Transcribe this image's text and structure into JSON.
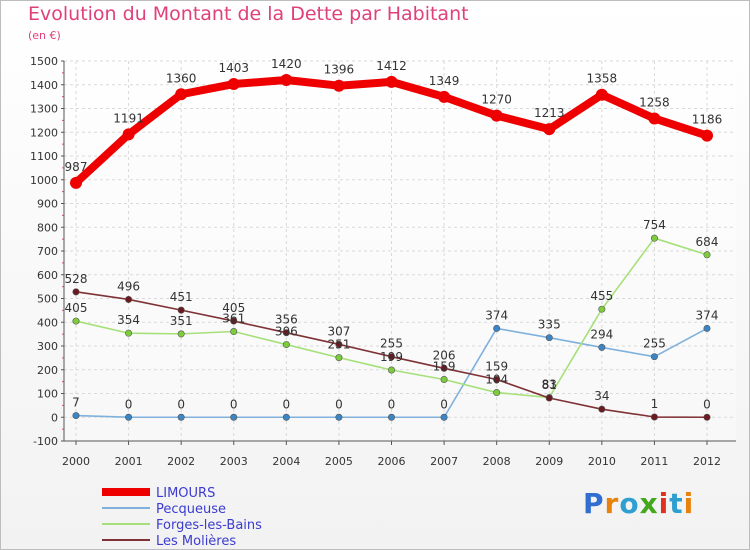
{
  "header": {
    "title": "Evolution du Montant de la Dette par Habitant",
    "subtitle": "(en €)"
  },
  "logo": {
    "text": "Proxiti"
  },
  "chart_data": {
    "type": "line",
    "title": "Evolution du Montant de la Dette par Habitant",
    "subtitle": "(en €)",
    "x": [
      2000,
      2001,
      2002,
      2003,
      2004,
      2005,
      2006,
      2007,
      2008,
      2009,
      2010,
      2011,
      2012
    ],
    "ylim": [
      -100,
      1500
    ],
    "yticks": [
      -100,
      0,
      100,
      200,
      300,
      400,
      500,
      600,
      700,
      800,
      900,
      1000,
      1100,
      1200,
      1300,
      1400,
      1500
    ],
    "grid": true,
    "legend_position": "bottom-left",
    "series": [
      {
        "name": "LIMOURS",
        "color": "#ee0000",
        "labelColor": "#333333",
        "values": [
          987,
          1191,
          1360,
          1403,
          1420,
          1396,
          1412,
          1349,
          1270,
          1213,
          1358,
          1258,
          1186
        ]
      },
      {
        "name": "Pecqueuse",
        "color": "#7fb1dc",
        "markerColor": "#3c85c4",
        "labelColor": "#333333",
        "values": [
          7,
          0,
          0,
          0,
          0,
          0,
          0,
          0,
          374,
          335,
          294,
          255,
          374
        ]
      },
      {
        "name": "Forges-les-Bains",
        "color": "#a6e07a",
        "markerColor": "#7ccc3c",
        "labelColor": "#333333",
        "values": [
          405,
          354,
          351,
          361,
          306,
          251,
          199,
          159,
          104,
          83,
          455,
          754,
          684
        ]
      },
      {
        "name": "Les Molières",
        "color": "#7f3236",
        "markerColor": "#6b1a20",
        "labelColor": "#333333",
        "values": [
          528,
          496,
          451,
          405,
          356,
          307,
          255,
          206,
          159,
          81,
          34,
          1,
          0
        ]
      }
    ]
  }
}
